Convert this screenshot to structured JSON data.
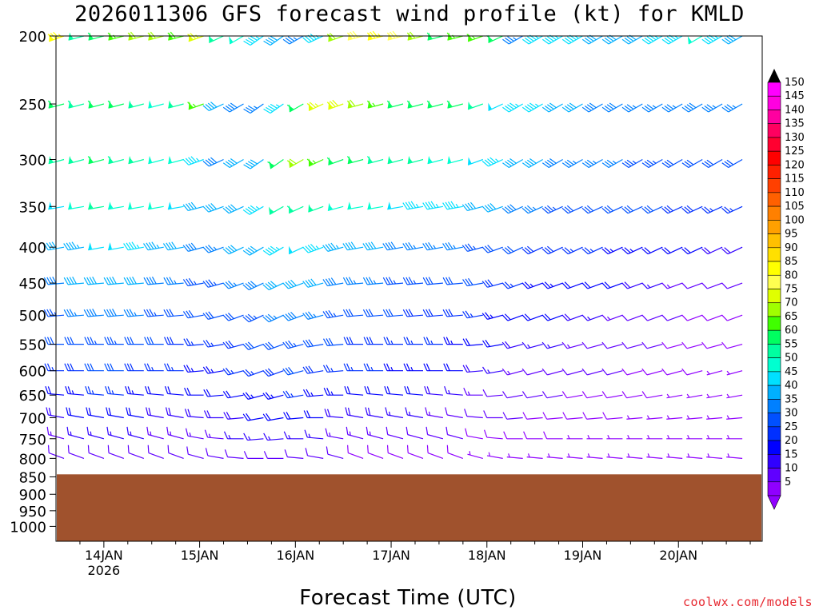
{
  "chart_data": {
    "type": "wind-profile",
    "title": "2026011306 GFS forecast wind profile (kt) for KMLD",
    "xlabel": "Forecast Time (UTC)",
    "ylabel": "",
    "credit": "coolwx.com/models",
    "pressure_levels": [
      200,
      250,
      300,
      350,
      400,
      450,
      500,
      550,
      600,
      650,
      700,
      750,
      800,
      850,
      900,
      950,
      1000
    ],
    "ylim": [
      200,
      1000
    ],
    "x_ticks": [
      {
        "label": "14JAN",
        "sublabel": "2026",
        "time_h": 18
      },
      {
        "label": "15JAN",
        "sublabel": "",
        "time_h": 42
      },
      {
        "label": "16JAN",
        "sublabel": "",
        "time_h": 66
      },
      {
        "label": "17JAN",
        "sublabel": "",
        "time_h": 90
      },
      {
        "label": "18JAN",
        "sublabel": "",
        "time_h": 114
      },
      {
        "label": "19JAN",
        "sublabel": "",
        "time_h": 138
      },
      {
        "label": "20JAN",
        "sublabel": "",
        "time_h": 162
      }
    ],
    "xlim_h": [
      6,
      183
    ],
    "time_step_h": 5,
    "terrain_pressure_hpa": 843,
    "colorbar": {
      "labels": [
        "150",
        "145",
        "140",
        "135",
        "130",
        "125",
        "120",
        "115",
        "110",
        "105",
        "100",
        "95",
        "90",
        "85",
        "80",
        "75",
        "70",
        "65",
        "60",
        "55",
        "50",
        "45",
        "40",
        "35",
        "30",
        "25",
        "20",
        "15",
        "10",
        "5"
      ],
      "colors": [
        "#ff00ff",
        "#ff00e0",
        "#ff00a0",
        "#ff0060",
        "#ff0030",
        "#ff0000",
        "#ff2000",
        "#ff4000",
        "#ff6000",
        "#ff8000",
        "#ffa000",
        "#ffc000",
        "#ffe000",
        "#ffff00",
        "#ffff50",
        "#e0ff00",
        "#a0ff00",
        "#40ff00",
        "#00ff60",
        "#00ffa0",
        "#00ffd0",
        "#00e0ff",
        "#00b0ff",
        "#0080ff",
        "#0050ff",
        "#0030ff",
        "#0000ff",
        "#3000ff",
        "#6000ff",
        "#9000ff"
      ]
    },
    "speed_by_level_kt": {
      "200": [
        86,
        55,
        62,
        65,
        70,
        72,
        68,
        75,
        55,
        50,
        45,
        40,
        35,
        45,
        70,
        80,
        85,
        80,
        70,
        60,
        65,
        65,
        60,
        35,
        45,
        45,
        45,
        40,
        40,
        40,
        45,
        45,
        50,
        45,
        40,
        40,
        45,
        45
      ],
      "250": [
        60,
        58,
        62,
        60,
        55,
        52,
        55,
        65,
        40,
        38,
        35,
        45,
        60,
        75,
        78,
        70,
        65,
        62,
        60,
        62,
        60,
        55,
        48,
        45,
        45,
        40,
        40,
        38,
        38,
        36,
        35,
        35,
        38,
        36,
        35,
        34,
        35,
        35
      ],
      "300": [
        55,
        56,
        60,
        58,
        55,
        50,
        52,
        45,
        38,
        40,
        40,
        60,
        70,
        65,
        62,
        60,
        58,
        56,
        55,
        54,
        52,
        48,
        45,
        42,
        40,
        38,
        36,
        36,
        35,
        34,
        34,
        32,
        32,
        30,
        30,
        30,
        32,
        30
      ],
      "350": [
        48,
        50,
        55,
        54,
        52,
        50,
        48,
        42,
        40,
        42,
        45,
        55,
        58,
        56,
        54,
        52,
        50,
        48,
        47,
        46,
        45,
        42,
        40,
        38,
        36,
        34,
        32,
        30,
        30,
        30,
        30,
        28,
        28,
        26,
        26,
        24,
        26,
        26
      ],
      "400": [
        42,
        44,
        48,
        48,
        46,
        44,
        42,
        38,
        36,
        40,
        42,
        45,
        48,
        46,
        44,
        42,
        40,
        38,
        37,
        36,
        36,
        34,
        32,
        30,
        28,
        28,
        26,
        26,
        24,
        24,
        22,
        22,
        20,
        18,
        18,
        16,
        18,
        18
      ],
      "450": [
        38,
        40,
        42,
        42,
        40,
        38,
        36,
        34,
        33,
        36,
        38,
        40,
        42,
        40,
        38,
        36,
        35,
        34,
        33,
        32,
        32,
        30,
        28,
        26,
        24,
        24,
        22,
        22,
        20,
        18,
        16,
        14,
        12,
        10,
        10,
        8,
        10,
        10
      ],
      "500": [
        34,
        36,
        38,
        38,
        36,
        34,
        32,
        30,
        30,
        32,
        34,
        36,
        38,
        36,
        34,
        32,
        31,
        30,
        29,
        28,
        28,
        26,
        24,
        22,
        20,
        20,
        18,
        16,
        14,
        12,
        12,
        10,
        8,
        8,
        8,
        8,
        8,
        8
      ],
      "550": [
        30,
        32,
        34,
        34,
        32,
        30,
        28,
        27,
        27,
        28,
        30,
        32,
        34,
        32,
        30,
        28,
        28,
        27,
        26,
        25,
        24,
        22,
        20,
        18,
        16,
        16,
        14,
        12,
        10,
        10,
        10,
        8,
        8,
        8,
        8,
        8,
        6,
        6
      ],
      "600": [
        26,
        28,
        30,
        30,
        28,
        26,
        25,
        24,
        24,
        25,
        26,
        28,
        30,
        28,
        27,
        25,
        25,
        24,
        23,
        22,
        20,
        18,
        16,
        14,
        12,
        12,
        10,
        10,
        10,
        8,
        8,
        8,
        8,
        6,
        6,
        6,
        6,
        6
      ],
      "650": [
        22,
        24,
        26,
        26,
        24,
        22,
        22,
        21,
        21,
        22,
        23,
        24,
        26,
        24,
        23,
        22,
        22,
        21,
        20,
        18,
        16,
        14,
        12,
        10,
        10,
        10,
        8,
        8,
        8,
        8,
        8,
        6,
        6,
        6,
        6,
        6,
        6,
        6
      ],
      "700": [
        18,
        20,
        22,
        22,
        20,
        18,
        18,
        18,
        18,
        19,
        20,
        21,
        22,
        20,
        19,
        18,
        18,
        17,
        16,
        14,
        12,
        10,
        10,
        10,
        8,
        8,
        8,
        8,
        8,
        6,
        6,
        6,
        6,
        6,
        6,
        6,
        6,
        6
      ],
      "750": [
        14,
        15,
        16,
        16,
        15,
        14,
        14,
        14,
        14,
        15,
        16,
        16,
        16,
        15,
        14,
        13,
        13,
        12,
        12,
        10,
        10,
        8,
        8,
        8,
        8,
        8,
        6,
        6,
        6,
        6,
        6,
        6,
        6,
        6,
        6,
        6,
        6,
        6
      ],
      "800": [
        10,
        10,
        12,
        12,
        11,
        10,
        10,
        10,
        10,
        10,
        11,
        12,
        12,
        11,
        10,
        9,
        9,
        9,
        8,
        8,
        8,
        7,
        7,
        7,
        6,
        6,
        6,
        6,
        6,
        6,
        6,
        6,
        6,
        6,
        6,
        6,
        6,
        6
      ]
    },
    "direction_by_level_deg": {
      "200": [
        250,
        255,
        255,
        255,
        255,
        255,
        255,
        250,
        245,
        240,
        235,
        235,
        240,
        245,
        250,
        255,
        255,
        255,
        255,
        255,
        255,
        250,
        245,
        240,
        240,
        240,
        240,
        240,
        240,
        240,
        240,
        240,
        240,
        240,
        240,
        240,
        240,
        240
      ],
      "250": [
        255,
        255,
        255,
        255,
        255,
        255,
        255,
        250,
        245,
        240,
        235,
        235,
        240,
        245,
        250,
        255,
        255,
        255,
        255,
        255,
        255,
        250,
        245,
        240,
        240,
        240,
        240,
        240,
        240,
        240,
        240,
        240,
        240,
        240,
        240,
        240,
        240,
        240
      ],
      "300": [
        255,
        255,
        255,
        255,
        255,
        255,
        255,
        250,
        245,
        240,
        235,
        235,
        240,
        245,
        250,
        255,
        255,
        255,
        255,
        255,
        255,
        250,
        245,
        240,
        240,
        240,
        240,
        240,
        240,
        240,
        240,
        240,
        240,
        240,
        240,
        240,
        240,
        240
      ],
      "350": [
        260,
        260,
        260,
        260,
        260,
        260,
        260,
        255,
        250,
        245,
        240,
        240,
        245,
        250,
        255,
        260,
        260,
        260,
        260,
        260,
        260,
        255,
        250,
        245,
        245,
        245,
        245,
        245,
        245,
        245,
        245,
        245,
        245,
        245,
        245,
        245,
        245,
        245
      ],
      "400": [
        260,
        260,
        260,
        260,
        260,
        260,
        260,
        255,
        250,
        245,
        240,
        240,
        245,
        250,
        255,
        260,
        260,
        260,
        260,
        260,
        260,
        255,
        250,
        245,
        245,
        245,
        245,
        245,
        245,
        245,
        245,
        245,
        245,
        245,
        245,
        245,
        245,
        245
      ],
      "450": [
        265,
        265,
        265,
        265,
        265,
        265,
        265,
        260,
        255,
        250,
        245,
        245,
        250,
        255,
        260,
        265,
        265,
        265,
        265,
        265,
        265,
        260,
        255,
        250,
        250,
        250,
        250,
        250,
        250,
        250,
        250,
        250,
        250,
        250,
        250,
        250,
        250,
        250
      ],
      "500": [
        265,
        265,
        265,
        265,
        265,
        265,
        265,
        260,
        255,
        250,
        245,
        245,
        250,
        255,
        260,
        265,
        265,
        265,
        265,
        265,
        265,
        260,
        255,
        250,
        250,
        250,
        250,
        250,
        250,
        250,
        250,
        250,
        250,
        250,
        250,
        250,
        250,
        250
      ],
      "550": [
        270,
        270,
        270,
        270,
        270,
        270,
        270,
        265,
        260,
        255,
        250,
        250,
        255,
        260,
        265,
        270,
        270,
        270,
        270,
        270,
        270,
        265,
        260,
        255,
        255,
        255,
        255,
        255,
        255,
        255,
        255,
        255,
        255,
        255,
        255,
        255,
        255,
        255
      ],
      "600": [
        270,
        270,
        270,
        270,
        270,
        270,
        270,
        265,
        260,
        255,
        250,
        250,
        255,
        260,
        265,
        270,
        270,
        270,
        270,
        270,
        270,
        265,
        260,
        255,
        255,
        255,
        255,
        255,
        255,
        255,
        255,
        255,
        255,
        255,
        255,
        255,
        255,
        255
      ],
      "650": [
        275,
        275,
        275,
        275,
        275,
        275,
        275,
        270,
        265,
        260,
        255,
        255,
        260,
        265,
        270,
        275,
        275,
        275,
        275,
        275,
        275,
        270,
        265,
        260,
        260,
        260,
        260,
        260,
        260,
        260,
        260,
        260,
        260,
        260,
        260,
        260,
        260,
        260
      ],
      "700": [
        280,
        280,
        280,
        280,
        280,
        280,
        280,
        275,
        270,
        265,
        260,
        260,
        265,
        270,
        275,
        280,
        280,
        280,
        280,
        280,
        280,
        275,
        270,
        265,
        265,
        265,
        265,
        265,
        265,
        265,
        265,
        265,
        265,
        265,
        265,
        265,
        265,
        265
      ],
      "750": [
        285,
        285,
        285,
        285,
        285,
        285,
        285,
        280,
        275,
        270,
        265,
        265,
        270,
        275,
        280,
        285,
        285,
        285,
        285,
        285,
        285,
        280,
        275,
        270,
        270,
        270,
        270,
        270,
        270,
        270,
        270,
        270,
        270,
        270,
        270,
        270,
        270,
        270
      ],
      "800": [
        290,
        290,
        290,
        290,
        290,
        290,
        290,
        285,
        280,
        275,
        270,
        270,
        275,
        280,
        285,
        290,
        290,
        290,
        290,
        290,
        290,
        285,
        280,
        275,
        275,
        275,
        275,
        275,
        275,
        275,
        275,
        275,
        275,
        275,
        275,
        275,
        275,
        275
      ]
    }
  }
}
